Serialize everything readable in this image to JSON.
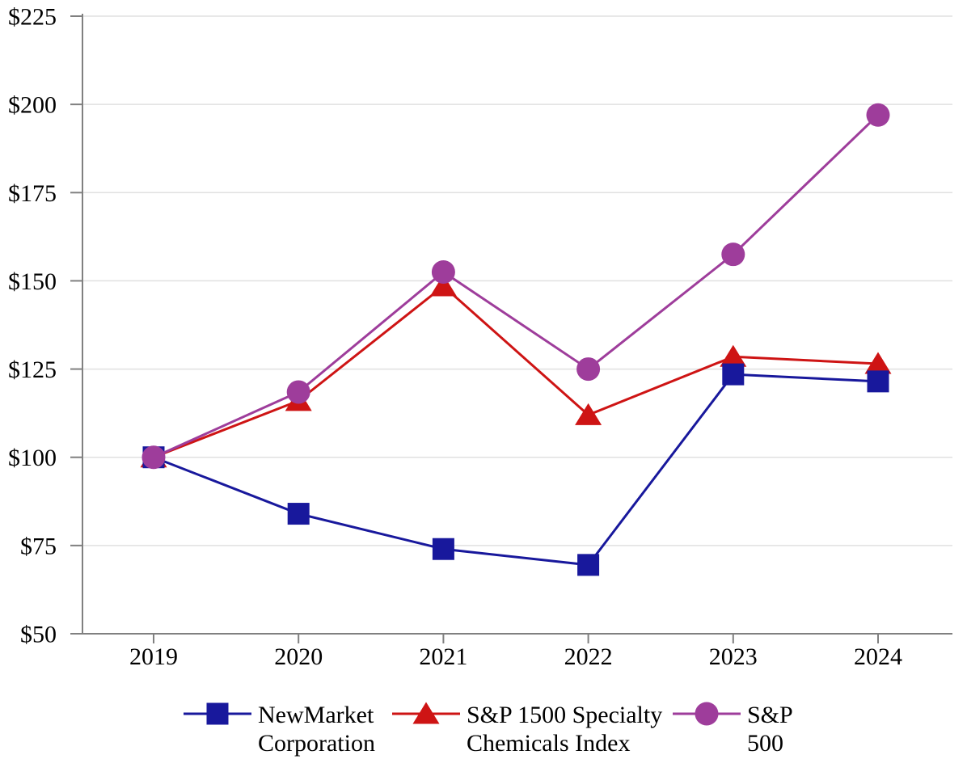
{
  "chart_data": {
    "type": "line",
    "title": "",
    "xlabel": "",
    "ylabel": "",
    "categories": [
      "2019",
      "2020",
      "2021",
      "2022",
      "2023",
      "2024"
    ],
    "series": [
      {
        "name": "NewMarket Corporation",
        "legend_lines": [
          "NewMarket",
          "Corporation"
        ],
        "marker": "square",
        "color": "#18189C",
        "values": [
          100,
          84,
          74,
          69.5,
          123.5,
          121.5
        ]
      },
      {
        "name": "S&P 1500 Specialty Chemicals Index",
        "legend_lines": [
          "S&P 1500 Specialty",
          "Chemicals Index"
        ],
        "marker": "triangle",
        "color": "#CE1414",
        "values": [
          100,
          116,
          148.5,
          112,
          128.5,
          126.5
        ]
      },
      {
        "name": "S&P 500",
        "legend_lines": [
          "S&P",
          "500"
        ],
        "marker": "circle",
        "color": "#9E3D9B",
        "values": [
          100,
          118.5,
          152.5,
          125,
          157.5,
          197
        ]
      }
    ],
    "ylim": [
      50,
      225
    ],
    "ytick_step": 25,
    "ytick_labels": [
      "$50",
      "$75",
      "$100",
      "$125",
      "$150",
      "$175",
      "$200",
      "$225"
    ],
    "grid": true,
    "legend_position": "bottom",
    "axis_color": "#808080",
    "grid_color": "#E0E0E0",
    "draw_order": [
      1,
      0,
      2
    ]
  }
}
